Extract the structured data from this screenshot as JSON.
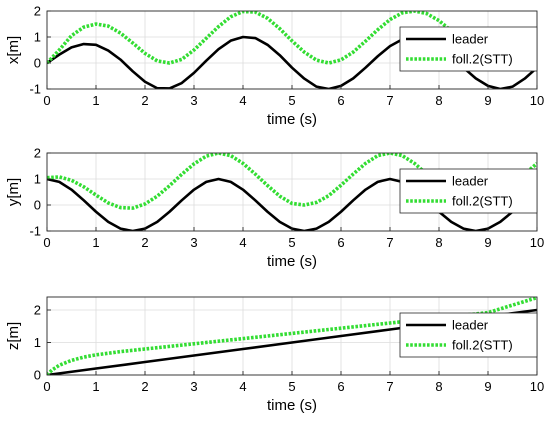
{
  "chart_data": [
    {
      "type": "line",
      "xlabel": "time (s)",
      "ylabel": "x[m]",
      "xlim": [
        0,
        10
      ],
      "ylim": [
        -1,
        2
      ],
      "xticks": [
        0,
        1,
        2,
        3,
        4,
        5,
        6,
        7,
        8,
        9,
        10
      ],
      "yticks": [
        -1,
        0,
        1,
        2
      ],
      "grid": true,
      "legend_placement": "right",
      "series": [
        {
          "name": "leader",
          "color": "#000000",
          "style": "solid",
          "x": [
            0,
            0.25,
            0.5,
            0.75,
            1.0,
            1.25,
            1.5,
            1.75,
            2.0,
            2.25,
            2.5,
            2.75,
            3.0,
            3.25,
            3.5,
            3.75,
            4.0,
            4.25,
            4.5,
            4.75,
            5.0,
            5.25,
            5.5,
            5.75,
            6.0,
            6.25,
            6.5,
            6.75,
            7.0,
            7.25,
            7.5,
            7.75,
            8.0,
            8.25,
            8.5,
            8.75,
            9.0,
            9.25,
            9.5,
            9.75,
            10.0
          ],
          "y": [
            0.0,
            0.32,
            0.6,
            0.73,
            0.7,
            0.48,
            0.13,
            -0.32,
            -0.72,
            -0.97,
            -0.98,
            -0.77,
            -0.38,
            0.09,
            0.53,
            0.86,
            1.0,
            0.96,
            0.7,
            0.3,
            -0.18,
            -0.6,
            -0.91,
            -1.0,
            -0.88,
            -0.59,
            -0.18,
            0.26,
            0.65,
            0.91,
            1.0,
            0.91,
            0.65,
            0.26,
            -0.18,
            -0.59,
            -0.88,
            -1.0,
            -0.91,
            -0.6,
            -0.18
          ]
        },
        {
          "name": "foll.2(STT)",
          "color": "#33dd33",
          "style": "dotted",
          "x": [
            0,
            0.25,
            0.5,
            0.75,
            1.0,
            1.25,
            1.5,
            1.75,
            2.0,
            2.25,
            2.5,
            2.75,
            3.0,
            3.25,
            3.5,
            3.75,
            4.0,
            4.25,
            4.5,
            4.75,
            5.0,
            5.25,
            5.5,
            5.75,
            6.0,
            6.25,
            6.5,
            6.75,
            7.0,
            7.25,
            7.5,
            7.75,
            8.0,
            8.25,
            8.5,
            8.75,
            9.0,
            9.25,
            9.5,
            9.75,
            10.0
          ],
          "y": [
            0.0,
            0.5,
            1.05,
            1.38,
            1.5,
            1.42,
            1.15,
            0.77,
            0.37,
            0.08,
            0.0,
            0.14,
            0.5,
            0.95,
            1.4,
            1.78,
            1.98,
            1.96,
            1.72,
            1.32,
            0.85,
            0.42,
            0.11,
            0.0,
            0.12,
            0.42,
            0.84,
            1.28,
            1.67,
            1.93,
            2.0,
            1.9,
            1.63,
            1.24,
            0.8,
            0.4,
            0.12,
            0.0,
            0.14,
            0.5,
            0.95
          ]
        }
      ]
    },
    {
      "type": "line",
      "xlabel": "time (s)",
      "ylabel": "y[m]",
      "xlim": [
        0,
        10
      ],
      "ylim": [
        -1,
        2
      ],
      "xticks": [
        0,
        1,
        2,
        3,
        4,
        5,
        6,
        7,
        8,
        9,
        10
      ],
      "yticks": [
        -1,
        0,
        1,
        2
      ],
      "grid": true,
      "legend_placement": "right",
      "series": [
        {
          "name": "leader",
          "color": "#000000",
          "style": "solid",
          "x": [
            0,
            0.25,
            0.5,
            0.75,
            1.0,
            1.25,
            1.5,
            1.75,
            2.0,
            2.25,
            2.5,
            2.75,
            3.0,
            3.25,
            3.5,
            3.75,
            4.0,
            4.25,
            4.5,
            4.75,
            5.0,
            5.25,
            5.5,
            5.75,
            6.0,
            6.25,
            6.5,
            6.75,
            7.0,
            7.25,
            7.5,
            7.75,
            8.0,
            8.25,
            8.5,
            8.75,
            9.0,
            9.25,
            9.5,
            9.75,
            10.0
          ],
          "y": [
            1.0,
            0.89,
            0.59,
            0.18,
            -0.26,
            -0.65,
            -0.91,
            -1.0,
            -0.91,
            -0.65,
            -0.26,
            0.18,
            0.59,
            0.89,
            1.0,
            0.89,
            0.59,
            0.18,
            -0.26,
            -0.65,
            -0.91,
            -1.0,
            -0.91,
            -0.65,
            -0.26,
            0.18,
            0.59,
            0.89,
            1.0,
            0.89,
            0.59,
            0.18,
            -0.26,
            -0.65,
            -0.91,
            -1.0,
            -0.91,
            -0.65,
            -0.26,
            0.18,
            0.59
          ]
        },
        {
          "name": "foll.2(STT)",
          "color": "#33dd33",
          "style": "dotted",
          "x": [
            0,
            0.25,
            0.5,
            0.75,
            1.0,
            1.25,
            1.5,
            1.75,
            2.0,
            2.25,
            2.5,
            2.75,
            3.0,
            3.25,
            3.5,
            3.75,
            4.0,
            4.25,
            4.5,
            4.75,
            5.0,
            5.25,
            5.5,
            5.75,
            6.0,
            6.25,
            6.5,
            6.75,
            7.0,
            7.25,
            7.5,
            7.75,
            8.0,
            8.25,
            8.5,
            8.75,
            9.0,
            9.25,
            9.5,
            9.75,
            10.0
          ],
          "y": [
            1.05,
            1.08,
            0.95,
            0.7,
            0.38,
            0.08,
            -0.1,
            -0.12,
            0.04,
            0.34,
            0.74,
            1.18,
            1.58,
            1.88,
            2.0,
            1.9,
            1.6,
            1.19,
            0.75,
            0.34,
            0.06,
            0.0,
            0.1,
            0.36,
            0.76,
            1.19,
            1.6,
            1.9,
            2.0,
            1.9,
            1.6,
            1.19,
            0.76,
            0.36,
            0.1,
            0.0,
            0.1,
            0.36,
            0.76,
            1.19,
            1.6
          ]
        }
      ]
    },
    {
      "type": "line",
      "xlabel": "time (s)",
      "ylabel": "z[m]",
      "xlim": [
        0,
        10
      ],
      "ylim": [
        0,
        2.4
      ],
      "xticks": [
        0,
        1,
        2,
        3,
        4,
        5,
        6,
        7,
        8,
        9,
        10
      ],
      "yticks": [
        0,
        1,
        2
      ],
      "grid": true,
      "legend_placement": "right",
      "series": [
        {
          "name": "leader",
          "color": "#000000",
          "style": "solid",
          "x": [
            0,
            1,
            2,
            3,
            4,
            5,
            6,
            7,
            8,
            9,
            10
          ],
          "y": [
            0.0,
            0.2,
            0.4,
            0.6,
            0.8,
            1.0,
            1.2,
            1.4,
            1.6,
            1.8,
            2.0
          ]
        },
        {
          "name": "foll.2(STT)",
          "color": "#33dd33",
          "style": "dotted",
          "x": [
            0,
            0.1,
            0.25,
            0.5,
            0.75,
            1.0,
            1.5,
            2.0,
            3.0,
            4.0,
            5.0,
            6.0,
            7.0,
            8.0,
            9.0,
            10.0
          ],
          "y": [
            0.0,
            0.15,
            0.3,
            0.45,
            0.55,
            0.62,
            0.72,
            0.8,
            0.96,
            1.12,
            1.28,
            1.44,
            1.6,
            1.76,
            1.92,
            2.38
          ]
        }
      ]
    }
  ]
}
